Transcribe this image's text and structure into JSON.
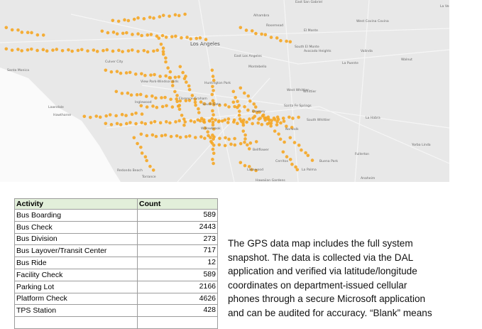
{
  "map": {
    "labels": [
      "Los Angeles",
      "Alhambra",
      "Rosemead",
      "El Monte",
      "Montebello",
      "East Los Angeles",
      "West Covina",
      "Covina",
      "Walnut",
      "La Puente",
      "South El Monte",
      "Avocado Heights",
      "Culver City",
      "Santa Monica",
      "View Park-Windsor Hills",
      "Inglewood",
      "Hawthorne",
      "Lawndale",
      "Florence-Graham",
      "South Gate",
      "Huntington Park",
      "Downey",
      "Santa Fe Springs",
      "West Whittier",
      "Whittier",
      "South Whittier",
      "Norwalk",
      "La Habra",
      "Fullerton",
      "Yorba Linda",
      "Anaheim",
      "Buena Park",
      "La Palma",
      "Cerritos",
      "Lakewood",
      "Bellflower",
      "Willowbrook",
      "Torrance",
      "Redondo Beach",
      "Hawaiian Gardens",
      "East San Gabriel",
      "La Verne",
      "Valinda"
    ]
  },
  "table": {
    "header": [
      "Activity",
      "Count"
    ],
    "rows": [
      [
        "Bus Boarding",
        "589"
      ],
      [
        "Bus Check",
        "2443"
      ],
      [
        "Bus Division",
        "273"
      ],
      [
        "Bus Layover/Transit Center",
        "717"
      ],
      [
        "Bus Ride",
        "12"
      ],
      [
        "Facility Check",
        "589"
      ],
      [
        "Parking Lot",
        "2166"
      ],
      [
        "Platform Check",
        "4626"
      ],
      [
        "TPS Station",
        "428"
      ]
    ]
  },
  "paragraph": {
    "lines": [
      "The GPS data map includes the full system",
      "snapshot. The data is collected via the DAL",
      "application and verified via latitude/longitude",
      "coordinates on department-issued cellular",
      "phones through a secure Microsoft application",
      "and can be audited for accuracy. “Blank” means"
    ]
  }
}
